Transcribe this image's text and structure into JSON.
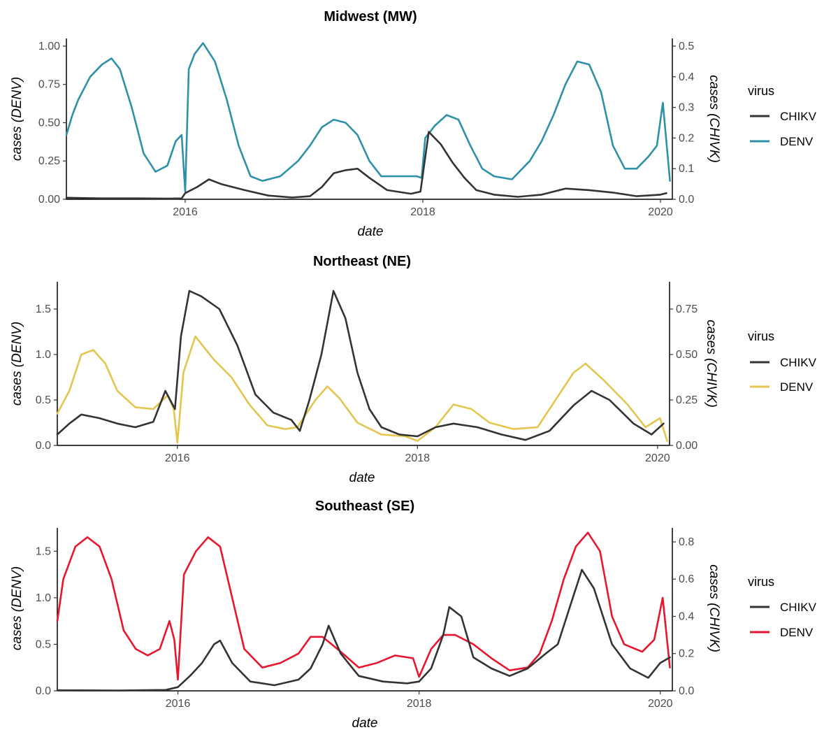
{
  "chart_data": [
    {
      "type": "line",
      "title": "Midwest (MW)",
      "xlabel": "date",
      "ylabel": "cases (DENV)",
      "y2label": "cases (CHIVK)",
      "xlim": [
        2015.0,
        2020.1
      ],
      "xticks": [
        2016,
        2018,
        2020
      ],
      "ylim": [
        0,
        1.05
      ],
      "yticks": [
        "0.00",
        "0.25",
        "0.50",
        "0.75",
        "1.00"
      ],
      "y2lim": [
        0,
        0.525
      ],
      "y2ticks": [
        "0.0",
        "0.1",
        "0.2",
        "0.3",
        "0.4",
        "0.5"
      ],
      "legend": {
        "title": "virus",
        "position": "right",
        "entries": [
          "CHIKV",
          "DENV"
        ]
      },
      "grid": false,
      "series": [
        {
          "name": "CHIKV",
          "axis": "right",
          "color": "#333333",
          "x": [
            2015.0,
            2015.3,
            2015.6,
            2015.85,
            2015.97,
            2016.0,
            2016.1,
            2016.2,
            2016.3,
            2016.5,
            2016.7,
            2016.9,
            2017.05,
            2017.15,
            2017.25,
            2017.35,
            2017.45,
            2017.55,
            2017.7,
            2017.9,
            2017.98,
            2018.05,
            2018.1,
            2018.15,
            2018.25,
            2018.35,
            2018.45,
            2018.6,
            2018.8,
            2019.0,
            2019.2,
            2019.4,
            2019.6,
            2019.8,
            2020.0,
            2020.05
          ],
          "values": [
            0.005,
            0.003,
            0.003,
            0.002,
            0.003,
            0.02,
            0.04,
            0.065,
            0.05,
            0.03,
            0.012,
            0.006,
            0.01,
            0.04,
            0.085,
            0.095,
            0.1,
            0.07,
            0.03,
            0.018,
            0.025,
            0.22,
            0.2,
            0.18,
            0.12,
            0.07,
            0.03,
            0.015,
            0.008,
            0.015,
            0.035,
            0.03,
            0.022,
            0.01,
            0.015,
            0.02
          ]
        },
        {
          "name": "DENV",
          "axis": "left",
          "color": "#2E91A8",
          "x": [
            2015.0,
            2015.05,
            2015.1,
            2015.2,
            2015.3,
            2015.38,
            2015.45,
            2015.55,
            2015.65,
            2015.75,
            2015.85,
            2015.92,
            2015.97,
            2016.0,
            2016.03,
            2016.08,
            2016.15,
            2016.25,
            2016.35,
            2016.45,
            2016.55,
            2016.65,
            2016.8,
            2016.95,
            2017.05,
            2017.15,
            2017.25,
            2017.35,
            2017.45,
            2017.55,
            2017.65,
            2017.8,
            2017.95,
            2017.99,
            2018.02,
            2018.1,
            2018.2,
            2018.3,
            2018.4,
            2018.5,
            2018.6,
            2018.75,
            2018.9,
            2019.0,
            2019.1,
            2019.2,
            2019.3,
            2019.4,
            2019.5,
            2019.6,
            2019.7,
            2019.8,
            2019.9,
            2019.97,
            2020.02,
            2020.08
          ],
          "values": [
            0.42,
            0.55,
            0.65,
            0.8,
            0.88,
            0.92,
            0.85,
            0.6,
            0.3,
            0.18,
            0.22,
            0.38,
            0.42,
            0.05,
            0.85,
            0.95,
            1.02,
            0.9,
            0.65,
            0.35,
            0.15,
            0.12,
            0.15,
            0.25,
            0.35,
            0.47,
            0.52,
            0.5,
            0.42,
            0.25,
            0.15,
            0.15,
            0.15,
            0.14,
            0.4,
            0.48,
            0.55,
            0.52,
            0.35,
            0.2,
            0.15,
            0.13,
            0.25,
            0.38,
            0.55,
            0.75,
            0.9,
            0.88,
            0.7,
            0.35,
            0.2,
            0.2,
            0.28,
            0.35,
            0.63,
            0.12
          ]
        }
      ]
    },
    {
      "type": "line",
      "title": "Northeast (NE)",
      "xlabel": "date",
      "ylabel": "cases (DENV)",
      "y2label": "cases (CHIVK)",
      "xlim": [
        2015.0,
        2020.1
      ],
      "xticks": [
        2016,
        2018,
        2020
      ],
      "ylim": [
        0,
        1.8
      ],
      "yticks": [
        "0.0",
        "0.5",
        "1.0",
        "1.5"
      ],
      "y2lim": [
        0,
        0.9
      ],
      "y2ticks": [
        "0.00",
        "0.25",
        "0.50",
        "0.75"
      ],
      "legend": {
        "title": "virus",
        "position": "right",
        "entries": [
          "CHIKV",
          "DENV"
        ]
      },
      "grid": false,
      "series": [
        {
          "name": "CHIKV",
          "axis": "right",
          "color": "#333333",
          "x": [
            2015.0,
            2015.1,
            2015.2,
            2015.35,
            2015.5,
            2015.65,
            2015.8,
            2015.9,
            2015.98,
            2016.03,
            2016.1,
            2016.2,
            2016.35,
            2016.5,
            2016.65,
            2016.8,
            2016.95,
            2017.02,
            2017.1,
            2017.2,
            2017.3,
            2017.4,
            2017.5,
            2017.6,
            2017.7,
            2017.85,
            2018.0,
            2018.15,
            2018.3,
            2018.5,
            2018.7,
            2018.9,
            2019.1,
            2019.3,
            2019.45,
            2019.6,
            2019.8,
            2019.95,
            2020.05
          ],
          "values": [
            0.06,
            0.12,
            0.17,
            0.15,
            0.12,
            0.1,
            0.13,
            0.3,
            0.2,
            0.6,
            0.85,
            0.82,
            0.75,
            0.55,
            0.28,
            0.18,
            0.14,
            0.08,
            0.25,
            0.5,
            0.85,
            0.7,
            0.4,
            0.2,
            0.1,
            0.06,
            0.05,
            0.1,
            0.12,
            0.1,
            0.06,
            0.03,
            0.08,
            0.22,
            0.3,
            0.25,
            0.12,
            0.06,
            0.12
          ]
        },
        {
          "name": "DENV",
          "axis": "left",
          "color": "#E3C64F",
          "x": [
            2015.0,
            2015.1,
            2015.2,
            2015.3,
            2015.4,
            2015.5,
            2015.65,
            2015.8,
            2015.92,
            2015.97,
            2016.0,
            2016.05,
            2016.15,
            2016.3,
            2016.45,
            2016.6,
            2016.75,
            2016.9,
            2017.0,
            2017.05,
            2017.15,
            2017.25,
            2017.35,
            2017.5,
            2017.7,
            2017.9,
            2018.0,
            2018.15,
            2018.3,
            2018.45,
            2018.6,
            2018.8,
            2019.0,
            2019.15,
            2019.3,
            2019.4,
            2019.55,
            2019.75,
            2019.9,
            2020.02,
            2020.08
          ],
          "values": [
            0.35,
            0.6,
            1.0,
            1.05,
            0.9,
            0.6,
            0.42,
            0.4,
            0.55,
            0.4,
            0.03,
            0.8,
            1.2,
            0.95,
            0.75,
            0.45,
            0.22,
            0.18,
            0.2,
            0.3,
            0.5,
            0.65,
            0.52,
            0.25,
            0.12,
            0.1,
            0.05,
            0.2,
            0.45,
            0.4,
            0.25,
            0.18,
            0.2,
            0.5,
            0.8,
            0.9,
            0.72,
            0.45,
            0.2,
            0.3,
            0.05
          ]
        }
      ]
    },
    {
      "type": "line",
      "title": "Southeast (SE)",
      "xlabel": "date",
      "ylabel": "cases (DENV)",
      "y2label": "cases (CHIVK)",
      "xlim": [
        2015.0,
        2020.1
      ],
      "xticks": [
        2016,
        2018,
        2020
      ],
      "ylim": [
        0,
        1.75
      ],
      "yticks": [
        "0.0",
        "0.5",
        "1.0",
        "1.5"
      ],
      "y2lim": [
        0,
        0.875
      ],
      "y2ticks": [
        "0.0",
        "0.2",
        "0.4",
        "0.6",
        "0.8"
      ],
      "legend": {
        "title": "virus",
        "position": "right",
        "entries": [
          "CHIKV",
          "DENV"
        ]
      },
      "grid": false,
      "series": [
        {
          "name": "CHIKV",
          "axis": "right",
          "color": "#333333",
          "x": [
            2015.0,
            2015.5,
            2015.9,
            2016.0,
            2016.1,
            2016.2,
            2016.3,
            2016.35,
            2016.45,
            2016.6,
            2016.8,
            2017.0,
            2017.1,
            2017.2,
            2017.25,
            2017.35,
            2017.5,
            2017.7,
            2017.9,
            2018.0,
            2018.1,
            2018.2,
            2018.25,
            2018.35,
            2018.45,
            2018.6,
            2018.75,
            2018.9,
            2019.05,
            2019.15,
            2019.25,
            2019.35,
            2019.45,
            2019.6,
            2019.75,
            2019.9,
            2020.0,
            2020.08
          ],
          "values": [
            0.003,
            0.002,
            0.005,
            0.02,
            0.08,
            0.15,
            0.25,
            0.27,
            0.15,
            0.05,
            0.03,
            0.06,
            0.12,
            0.25,
            0.35,
            0.2,
            0.08,
            0.05,
            0.04,
            0.05,
            0.12,
            0.3,
            0.45,
            0.4,
            0.18,
            0.12,
            0.08,
            0.12,
            0.2,
            0.25,
            0.45,
            0.65,
            0.55,
            0.25,
            0.12,
            0.07,
            0.15,
            0.18
          ]
        },
        {
          "name": "DENV",
          "axis": "left",
          "color": "#E8152F",
          "x": [
            2015.0,
            2015.05,
            2015.15,
            2015.25,
            2015.35,
            2015.45,
            2015.55,
            2015.65,
            2015.75,
            2015.85,
            2015.93,
            2015.97,
            2016.0,
            2016.05,
            2016.15,
            2016.25,
            2016.35,
            2016.45,
            2016.55,
            2016.7,
            2016.85,
            2017.0,
            2017.1,
            2017.2,
            2017.35,
            2017.5,
            2017.65,
            2017.8,
            2017.95,
            2018.0,
            2018.1,
            2018.2,
            2018.3,
            2018.45,
            2018.6,
            2018.75,
            2018.9,
            2019.0,
            2019.1,
            2019.2,
            2019.3,
            2019.4,
            2019.5,
            2019.6,
            2019.7,
            2019.85,
            2019.95,
            2020.02,
            2020.08
          ],
          "values": [
            0.75,
            1.2,
            1.55,
            1.65,
            1.55,
            1.2,
            0.65,
            0.45,
            0.38,
            0.45,
            0.75,
            0.55,
            0.12,
            1.25,
            1.5,
            1.65,
            1.55,
            1.0,
            0.45,
            0.25,
            0.3,
            0.4,
            0.58,
            0.58,
            0.42,
            0.25,
            0.3,
            0.38,
            0.35,
            0.15,
            0.45,
            0.6,
            0.6,
            0.5,
            0.35,
            0.22,
            0.25,
            0.4,
            0.75,
            1.2,
            1.55,
            1.7,
            1.5,
            0.8,
            0.5,
            0.42,
            0.55,
            1.0,
            0.25
          ]
        }
      ]
    }
  ]
}
